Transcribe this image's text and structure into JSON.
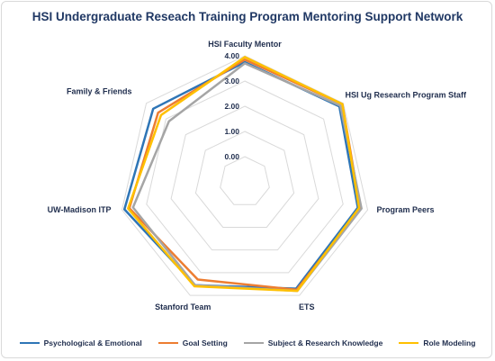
{
  "chart_data": {
    "type": "radar",
    "title": "HSI Undergraduate Reseach Training Program Mentoring Support Network",
    "categories": [
      "HSI Faculty Mentor",
      "HSI Ug Research Program Staff",
      "Program Peers",
      "ETS",
      "Stanford Team",
      "UW-Madison ITP",
      "Family & Friends"
    ],
    "tick_labels": [
      "0.00",
      "1.00",
      "2.00",
      "3.00",
      "4.00"
    ],
    "rlim": [
      -1,
      4
    ],
    "grid": true,
    "legend_position": "bottom",
    "series": [
      {
        "name": "Psychological & Emotional",
        "color": "#2e75b6",
        "values": [
          3.75,
          3.8,
          3.6,
          3.7,
          3.55,
          3.9,
          3.65
        ]
      },
      {
        "name": "Goal Setting",
        "color": "#ed7d31",
        "values": [
          3.85,
          3.95,
          3.7,
          3.75,
          3.3,
          3.7,
          3.4
        ]
      },
      {
        "name": "Subject & Research Knowledge",
        "color": "#a5a5a5",
        "values": [
          3.7,
          3.85,
          3.75,
          3.8,
          3.55,
          3.55,
          2.85
        ]
      },
      {
        "name": "Role Modeling",
        "color": "#ffc000",
        "values": [
          3.95,
          3.95,
          3.65,
          3.8,
          3.6,
          3.75,
          3.25
        ]
      }
    ]
  }
}
